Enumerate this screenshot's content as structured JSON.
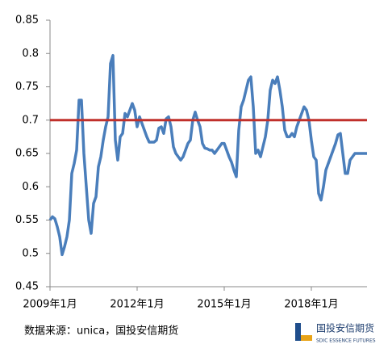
{
  "chart_data": {
    "type": "line",
    "categories": [
      "2009年1月",
      null,
      null,
      null,
      null,
      null,
      null,
      null,
      null,
      null,
      null,
      null,
      null,
      null,
      null,
      null,
      null,
      null,
      null,
      null,
      null,
      null,
      null,
      null,
      null,
      null,
      null,
      null,
      null,
      null,
      null,
      null,
      null,
      null,
      null,
      null,
      "2012年1月",
      null,
      null,
      null,
      null,
      null,
      null,
      null,
      null,
      null,
      null,
      null,
      null,
      null,
      null,
      null,
      null,
      null,
      null,
      null,
      null,
      null,
      null,
      null,
      null,
      null,
      null,
      null,
      null,
      null,
      null,
      null,
      null,
      null,
      null,
      null,
      "2015年1月",
      null,
      null,
      null,
      null,
      null,
      null,
      null,
      null,
      null,
      null,
      null,
      null,
      null,
      null,
      null,
      null,
      null,
      null,
      null,
      null,
      null,
      null,
      null,
      null,
      null,
      null,
      null,
      null,
      null,
      null,
      null,
      null,
      null,
      null,
      null,
      "2018年1月",
      null,
      null,
      null,
      null,
      null,
      null,
      null,
      null,
      null,
      null,
      null,
      null,
      null,
      null,
      null,
      null,
      null,
      null,
      null,
      null,
      null,
      null,
      null
    ],
    "series": [
      {
        "color": "#4a7ebb",
        "values": [
          0.55,
          0.555,
          0.552,
          0.54,
          0.525,
          0.498,
          0.51,
          0.525,
          0.55,
          0.62,
          0.635,
          0.655,
          0.73,
          0.73,
          0.65,
          0.6,
          0.55,
          0.53,
          0.575,
          0.585,
          0.63,
          0.645,
          0.67,
          0.69,
          0.705,
          0.785,
          0.797,
          0.67,
          0.64,
          0.675,
          0.68,
          0.71,
          0.705,
          0.715,
          0.725,
          0.715,
          0.69,
          0.705,
          0.695,
          0.685,
          0.675,
          0.667,
          0.667,
          0.667,
          0.67,
          0.688,
          0.69,
          0.68,
          0.702,
          0.705,
          0.69,
          0.66,
          0.65,
          0.645,
          0.64,
          0.645,
          0.655,
          0.665,
          0.67,
          0.7,
          0.712,
          0.7,
          0.69,
          0.665,
          0.658,
          0.657,
          0.655,
          0.655,
          0.65,
          0.655,
          0.66,
          0.665,
          0.665,
          0.655,
          0.645,
          0.637,
          0.625,
          0.615,
          0.685,
          0.72,
          0.73,
          0.745,
          0.76,
          0.765,
          0.72,
          0.65,
          0.655,
          0.645,
          0.66,
          0.675,
          0.7,
          0.745,
          0.76,
          0.755,
          0.765,
          0.745,
          0.72,
          0.685,
          0.675,
          0.675,
          0.68,
          0.675,
          0.69,
          0.7,
          0.71,
          0.72,
          0.715,
          0.7,
          0.67,
          0.645,
          0.64,
          0.59,
          0.58,
          0.6,
          0.625,
          0.635,
          0.645,
          0.655,
          0.665,
          0.678,
          0.68,
          0.65,
          0.62,
          0.62,
          0.64,
          0.645,
          0.65,
          0.65,
          0.65,
          0.65,
          0.65,
          0.65
        ]
      }
    ],
    "hline": {
      "value": 0.7,
      "color": "#c0302b"
    },
    "ylim": [
      0.45,
      0.85
    ],
    "yticks": [
      0.45,
      0.5,
      0.55,
      0.6,
      0.65,
      0.7,
      0.75,
      0.8,
      0.85
    ],
    "source": "数据来源：unica，国投安信期货",
    "logo": {
      "name": "国投安信期货",
      "subtitle": "SDIC ESSENCE FUTURES"
    }
  }
}
